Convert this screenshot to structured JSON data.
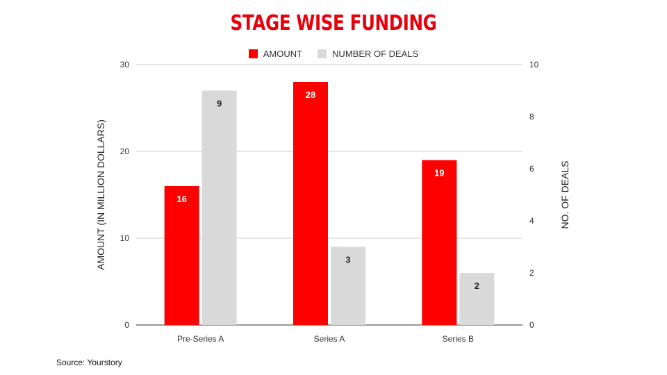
{
  "chart_data": {
    "type": "bar",
    "title": "STAGE WISE FUNDING",
    "categories": [
      "Pre-Series A",
      "Series A",
      "Series B"
    ],
    "series": [
      {
        "name": "AMOUNT",
        "axis": "left",
        "color": "#ff0000",
        "values": [
          16,
          28,
          19
        ]
      },
      {
        "name": "NUMBER OF DEALS",
        "axis": "right",
        "color": "#d9d9d9",
        "values": [
          9,
          3,
          2
        ]
      }
    ],
    "ylabel_left": "AMOUNT (IN MILLION DOLLARS)",
    "ylabel_right": "NO. OF DEALS",
    "ylim_left": [
      0,
      30
    ],
    "ylim_right": [
      0,
      10
    ],
    "yticks_left": [
      0,
      10,
      20,
      30
    ],
    "yticks_right": [
      0,
      2,
      4,
      6,
      8,
      10
    ],
    "grid": true,
    "legend_position": "top-center"
  },
  "source": "Source: Yourstory"
}
